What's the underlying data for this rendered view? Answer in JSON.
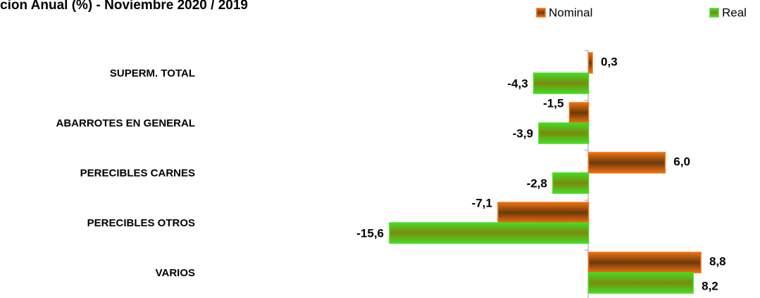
{
  "chart_data": {
    "type": "hbar",
    "title": "cion Anual (%) -  Noviembre 2020 / 2019",
    "categories": [
      "SUPERM. TOTAL",
      "ABARROTES EN GENERAL",
      "PERECIBLES CARNES",
      "PERECIBLES OTROS",
      "VARIOS"
    ],
    "series": [
      {
        "name": "Nominal",
        "color": "#f07010",
        "values": [
          0.3,
          -1.5,
          6.0,
          -7.1,
          8.8
        ],
        "value_labels": [
          "0,3",
          "-1,5",
          "6,0",
          "-7,1",
          "8,8"
        ]
      },
      {
        "name": "Real",
        "color": "#44dd22",
        "values": [
          -4.3,
          -3.9,
          -2.8,
          -15.6,
          8.2
        ],
        "value_labels": [
          "-4,3",
          "-3,9",
          "-2,8",
          "-15,6",
          "8,2"
        ]
      }
    ]
  }
}
